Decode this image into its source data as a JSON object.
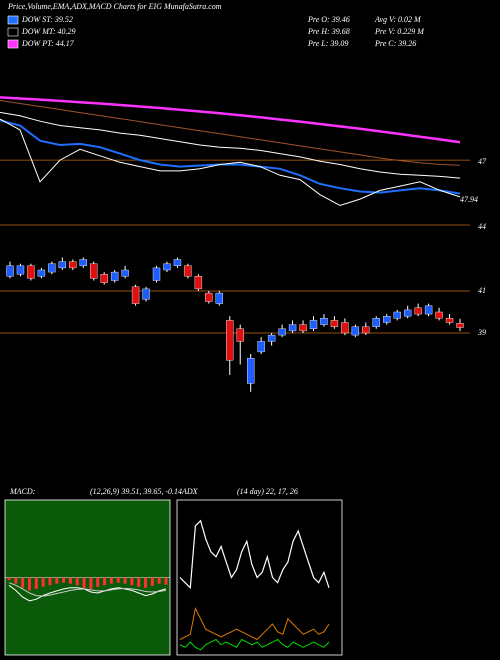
{
  "header": {
    "title": "Price,Volume,EMA,ADX,MACD Charts for EIG MunafaSutra.com",
    "legend": [
      {
        "label": "DOW ST: 39.52",
        "color": "#1f6fff"
      },
      {
        "label": "DOW MT: 40.29",
        "color": "#000000"
      },
      {
        "label": "DOW PT: 44.17",
        "color": "#ff33ff"
      }
    ],
    "stats": [
      "Pre  O: 39.46",
      "Avg V: 0.02  M",
      "Pre  H: 39.68",
      "Pre  V: 0.229 M",
      "Pre  L: 39.09",
      "Pre  C: 39.26"
    ]
  },
  "chart_data": [
    {
      "type": "line",
      "ylim": [
        44,
        51.4
      ],
      "yticks": [
        47,
        44
      ],
      "annotation": "47.94",
      "grid_color": "#c06a10",
      "series": [
        {
          "color": "#ff33ff",
          "width": 2.5,
          "values": [
            49.9,
            49.85,
            49.8,
            49.74,
            49.68,
            49.62,
            49.55,
            49.48,
            49.41,
            49.33,
            49.25,
            49.17,
            49.08,
            48.98,
            48.88,
            48.78,
            48.67,
            48.56,
            48.45,
            48.33,
            48.21,
            48.08,
            47.96,
            47.83
          ]
        },
        {
          "color": "#a0522d",
          "width": 1,
          "values": [
            49.76,
            49.62,
            49.48,
            49.34,
            49.2,
            49.06,
            48.92,
            48.78,
            48.64,
            48.5,
            48.36,
            48.22,
            48.08,
            47.94,
            47.8,
            47.66,
            47.52,
            47.38,
            47.24,
            47.1,
            46.98,
            46.88,
            46.8,
            46.76
          ]
        },
        {
          "color": "#ffffff",
          "width": 1,
          "values": [
            49.21,
            49.05,
            48.8,
            48.6,
            48.5,
            48.4,
            48.25,
            48.15,
            48.0,
            47.85,
            47.7,
            47.6,
            47.55,
            47.45,
            47.3,
            47.15,
            46.95,
            46.8,
            46.6,
            46.45,
            46.35,
            46.3,
            46.25,
            46.17
          ]
        },
        {
          "color": "#1f6fff",
          "width": 2,
          "values": [
            48.84,
            48.6,
            47.9,
            47.7,
            47.75,
            47.6,
            47.3,
            47.0,
            46.8,
            46.7,
            46.75,
            46.8,
            46.8,
            46.7,
            46.6,
            46.3,
            45.9,
            45.7,
            45.55,
            45.5,
            45.6,
            45.7,
            45.6,
            45.45
          ]
        },
        {
          "color": "#ffffff",
          "width": 1,
          "values": [
            48.9,
            48.4,
            46.0,
            47.0,
            47.5,
            47.2,
            46.9,
            46.7,
            46.5,
            46.5,
            46.6,
            46.8,
            46.9,
            46.7,
            46.3,
            46.1,
            45.4,
            44.9,
            45.2,
            45.6,
            45.8,
            46.0,
            45.6,
            45.3
          ]
        }
      ]
    },
    {
      "type": "candlestick",
      "ylim": [
        32,
        44
      ],
      "yticks": [
        41,
        39
      ],
      "grid_color": "#c06a10",
      "up_color": "#1e5eff",
      "down_color": "#e01010",
      "open": [
        41.7,
        41.8,
        42.2,
        41.7,
        41.9,
        42.1,
        42.4,
        42.2,
        42.3,
        41.8,
        41.5,
        41.7,
        41.2,
        40.6,
        41.5,
        42.0,
        42.2,
        42.2,
        41.7,
        40.9,
        40.4,
        39.6,
        39.2,
        36.6,
        38.1,
        38.6,
        38.9,
        39.1,
        39.4,
        39.2,
        39.4,
        39.6,
        39.5,
        38.9,
        39.3,
        39.3,
        39.5,
        39.7,
        39.8,
        40.2,
        39.9,
        40.0,
        39.7,
        39.46
      ],
      "high": [
        42.4,
        42.3,
        42.3,
        42.1,
        42.4,
        42.6,
        42.5,
        42.6,
        42.4,
        41.9,
        42.0,
        42.2,
        41.3,
        41.2,
        42.2,
        42.4,
        42.6,
        42.3,
        41.8,
        41.0,
        41.0,
        39.8,
        39.4,
        38.0,
        38.8,
        39.0,
        39.4,
        39.6,
        39.6,
        39.8,
        39.9,
        39.8,
        39.7,
        39.4,
        39.5,
        39.8,
        39.9,
        40.1,
        40.3,
        40.4,
        40.4,
        40.2,
        39.9,
        39.68
      ],
      "low": [
        41.6,
        41.7,
        41.5,
        41.6,
        41.8,
        42.0,
        42.0,
        42.1,
        41.5,
        41.3,
        41.4,
        41.6,
        40.3,
        40.5,
        41.4,
        41.9,
        42.1,
        41.6,
        41.0,
        40.4,
        40.3,
        37.0,
        37.5,
        36.2,
        38.0,
        38.4,
        38.8,
        39.0,
        39.0,
        39.1,
        39.3,
        39.2,
        38.9,
        38.8,
        38.9,
        39.2,
        39.4,
        39.6,
        39.7,
        39.8,
        39.8,
        39.6,
        39.4,
        39.09
      ],
      "close": [
        42.2,
        42.2,
        41.6,
        42.0,
        42.3,
        42.4,
        42.1,
        42.5,
        41.6,
        41.4,
        41.9,
        42.0,
        40.4,
        41.1,
        42.1,
        42.3,
        42.5,
        41.7,
        41.1,
        40.5,
        40.9,
        37.7,
        38.6,
        37.8,
        38.6,
        38.9,
        39.2,
        39.4,
        39.1,
        39.6,
        39.7,
        39.3,
        39.0,
        39.3,
        39.0,
        39.7,
        39.8,
        40.0,
        40.1,
        39.9,
        40.3,
        39.7,
        39.5,
        39.26
      ]
    },
    {
      "type": "macd",
      "title": "MACD:",
      "subtitle": "(12,26,9) 39.51, 39.65, -0.14",
      "background": "#0a5a0a",
      "ylim": [
        -1.5,
        1.5
      ],
      "hist_color": "#ff3030",
      "histogram": [
        -0.05,
        -0.12,
        -0.2,
        -0.25,
        -0.22,
        -0.18,
        -0.15,
        -0.12,
        -0.1,
        -0.12,
        -0.15,
        -0.2,
        -0.22,
        -0.18,
        -0.15,
        -0.12,
        -0.1,
        -0.12,
        -0.15,
        -0.18,
        -0.2,
        -0.16,
        -0.12,
        -0.14
      ],
      "series": [
        {
          "color": "#ffffff",
          "values": [
            -0.15,
            -0.25,
            -0.38,
            -0.45,
            -0.42,
            -0.35,
            -0.3,
            -0.26,
            -0.22,
            -0.2,
            -0.2,
            -0.22,
            -0.28,
            -0.3,
            -0.26,
            -0.22,
            -0.2,
            -0.22,
            -0.25,
            -0.3,
            -0.35,
            -0.32,
            -0.26,
            -0.22
          ]
        },
        {
          "color": "#cccccc",
          "values": [
            -0.1,
            -0.15,
            -0.22,
            -0.3,
            -0.35,
            -0.36,
            -0.34,
            -0.31,
            -0.28,
            -0.25,
            -0.23,
            -0.22,
            -0.24,
            -0.26,
            -0.26,
            -0.24,
            -0.22,
            -0.21,
            -0.22,
            -0.24,
            -0.27,
            -0.28,
            -0.27,
            -0.25
          ]
        }
      ]
    },
    {
      "type": "adx",
      "title": "ADX",
      "subtitle": "(14 day) 22, 17, 26",
      "ylim": [
        0,
        60
      ],
      "series": [
        {
          "color": "#ffffff",
          "values": [
            30,
            28,
            26,
            50,
            52,
            45,
            40,
            38,
            42,
            36,
            30,
            33,
            40,
            44,
            35,
            30,
            32,
            38,
            30,
            28,
            33,
            36,
            44,
            48,
            42,
            36,
            30,
            28,
            32,
            26
          ]
        },
        {
          "color": "#e07b00",
          "values": [
            6,
            7,
            8,
            18,
            14,
            10,
            9,
            8,
            7,
            8,
            9,
            10,
            9,
            8,
            7,
            6,
            8,
            10,
            12,
            9,
            8,
            14,
            12,
            10,
            8,
            9,
            10,
            8,
            9,
            12
          ]
        },
        {
          "color": "#00dd00",
          "values": [
            4,
            3,
            5,
            3,
            2,
            4,
            5,
            6,
            4,
            5,
            4,
            3,
            6,
            5,
            4,
            5,
            3,
            4,
            5,
            6,
            4,
            3,
            5,
            4,
            3,
            4,
            5,
            4,
            3,
            5
          ]
        }
      ]
    }
  ]
}
